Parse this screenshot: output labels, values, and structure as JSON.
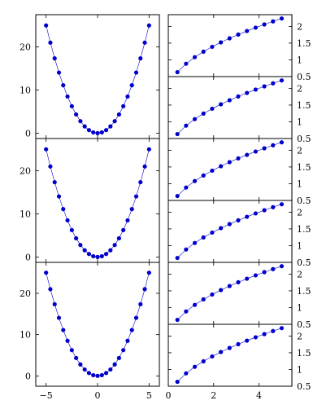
{
  "colors": {
    "series": "#0000cc"
  },
  "chart_data": [
    {
      "type": "line",
      "panel": "left-1",
      "x": [
        -5,
        -4.5833,
        -4.1667,
        -3.75,
        -3.3333,
        -2.9167,
        -2.5,
        -2.0833,
        -1.6667,
        -1.25,
        -0.8333,
        -0.4167,
        0,
        0.4167,
        0.8333,
        1.25,
        1.6667,
        2.0833,
        2.5,
        2.9167,
        3.3333,
        3.75,
        4.1667,
        4.5833,
        5
      ],
      "y": [
        25,
        21.0069,
        17.3611,
        14.0625,
        11.1111,
        8.5069,
        6.25,
        4.3403,
        2.7778,
        1.5625,
        0.6944,
        0.1736,
        0,
        0.1736,
        0.6944,
        1.5625,
        2.7778,
        4.3403,
        6.25,
        8.5069,
        11.1111,
        14.0625,
        17.3611,
        21.0069,
        25
      ],
      "xlim": [
        -6,
        6
      ],
      "ylim": [
        -1.25,
        27.5
      ],
      "yticks": [
        0,
        10,
        20
      ],
      "yticklabels": [
        "0",
        "10",
        "20"
      ],
      "xticks": [
        -5,
        0,
        5
      ],
      "xticklabels": []
    },
    {
      "type": "line",
      "panel": "left-2",
      "x": [
        -5,
        -4.5833,
        -4.1667,
        -3.75,
        -3.3333,
        -2.9167,
        -2.5,
        -2.0833,
        -1.6667,
        -1.25,
        -0.8333,
        -0.4167,
        0,
        0.4167,
        0.8333,
        1.25,
        1.6667,
        2.0833,
        2.5,
        2.9167,
        3.3333,
        3.75,
        4.1667,
        4.5833,
        5
      ],
      "y": [
        25,
        21.0069,
        17.3611,
        14.0625,
        11.1111,
        8.5069,
        6.25,
        4.3403,
        2.7778,
        1.5625,
        0.6944,
        0.1736,
        0,
        0.1736,
        0.6944,
        1.5625,
        2.7778,
        4.3403,
        6.25,
        8.5069,
        11.1111,
        14.0625,
        17.3611,
        21.0069,
        25
      ],
      "xlim": [
        -6,
        6
      ],
      "ylim": [
        -1.25,
        27.5
      ],
      "yticks": [
        0,
        10,
        20
      ],
      "yticklabels": [
        "0",
        "10",
        "20"
      ],
      "xticks": [
        -5,
        0,
        5
      ],
      "xticklabels": []
    },
    {
      "type": "line",
      "panel": "left-3",
      "x": [
        -5,
        -4.5833,
        -4.1667,
        -3.75,
        -3.3333,
        -2.9167,
        -2.5,
        -2.0833,
        -1.6667,
        -1.25,
        -0.8333,
        -0.4167,
        0,
        0.4167,
        0.8333,
        1.25,
        1.6667,
        2.0833,
        2.5,
        2.9167,
        3.3333,
        3.75,
        4.1667,
        4.5833,
        5
      ],
      "y": [
        25,
        21.0069,
        17.3611,
        14.0625,
        11.1111,
        8.5069,
        6.25,
        4.3403,
        2.7778,
        1.5625,
        0.6944,
        0.1736,
        0,
        0.1736,
        0.6944,
        1.5625,
        2.7778,
        4.3403,
        6.25,
        8.5069,
        11.1111,
        14.0625,
        17.3611,
        21.0069,
        25
      ],
      "xlim": [
        -6,
        6
      ],
      "ylim": [
        -2.5,
        27.5
      ],
      "yticks": [
        0,
        10,
        20
      ],
      "yticklabels": [
        "0",
        "10",
        "20"
      ],
      "xticks": [
        -5,
        0,
        5
      ],
      "xticklabels": [
        "−5",
        "0",
        "5"
      ]
    },
    {
      "type": "line",
      "panel": "right-1",
      "x": [
        0.4,
        0.7833,
        1.1667,
        1.55,
        1.9333,
        2.3167,
        2.7,
        3.0833,
        3.4667,
        3.85,
        4.2333,
        4.6167,
        5
      ],
      "y": [
        0.6325,
        0.8851,
        1.0801,
        1.245,
        1.3904,
        1.5221,
        1.6432,
        1.7559,
        1.8619,
        1.9621,
        2.0575,
        2.1487,
        2.2361
      ],
      "xlim": [
        0,
        5.45
      ],
      "ylim": [
        0.5,
        2.35
      ],
      "yticks": [
        0.5,
        1,
        1.5,
        2
      ],
      "yticklabels": [
        "0.5",
        "1",
        "1.5",
        "2"
      ],
      "xticks": [
        0,
        2,
        4
      ],
      "xticklabels": []
    },
    {
      "type": "line",
      "panel": "right-2",
      "x": [
        0.4,
        0.7833,
        1.1667,
        1.55,
        1.9333,
        2.3167,
        2.7,
        3.0833,
        3.4667,
        3.85,
        4.2333,
        4.6167,
        5
      ],
      "y": [
        0.6325,
        0.8851,
        1.0801,
        1.245,
        1.3904,
        1.5221,
        1.6432,
        1.7559,
        1.8619,
        1.9621,
        2.0575,
        2.1487,
        2.2361
      ],
      "xlim": [
        0,
        5.45
      ],
      "ylim": [
        0.5,
        2.35
      ],
      "yticks": [
        0.5,
        1,
        1.5,
        2
      ],
      "yticklabels": [
        "0.5",
        "1",
        "1.5",
        "2"
      ],
      "xticks": [
        0,
        2,
        4
      ],
      "xticklabels": []
    },
    {
      "type": "line",
      "panel": "right-3",
      "x": [
        0.4,
        0.7833,
        1.1667,
        1.55,
        1.9333,
        2.3167,
        2.7,
        3.0833,
        3.4667,
        3.85,
        4.2333,
        4.6167,
        5
      ],
      "y": [
        0.6325,
        0.8851,
        1.0801,
        1.245,
        1.3904,
        1.5221,
        1.6432,
        1.7559,
        1.8619,
        1.9621,
        2.0575,
        2.1487,
        2.2361
      ],
      "xlim": [
        0,
        5.45
      ],
      "ylim": [
        0.5,
        2.35
      ],
      "yticks": [
        0.5,
        1,
        1.5,
        2
      ],
      "yticklabels": [
        "0.5",
        "1",
        "1.5",
        "2"
      ],
      "xticks": [
        0,
        2,
        4
      ],
      "xticklabels": []
    },
    {
      "type": "line",
      "panel": "right-4",
      "x": [
        0.4,
        0.7833,
        1.1667,
        1.55,
        1.9333,
        2.3167,
        2.7,
        3.0833,
        3.4667,
        3.85,
        4.2333,
        4.6167,
        5
      ],
      "y": [
        0.6325,
        0.8851,
        1.0801,
        1.245,
        1.3904,
        1.5221,
        1.6432,
        1.7559,
        1.8619,
        1.9621,
        2.0575,
        2.1487,
        2.2361
      ],
      "xlim": [
        0,
        5.45
      ],
      "ylim": [
        0.5,
        2.35
      ],
      "yticks": [
        0.5,
        1,
        1.5,
        2
      ],
      "yticklabels": [
        "0.5",
        "1",
        "1.5",
        "2"
      ],
      "xticks": [
        0,
        2,
        4
      ],
      "xticklabels": []
    },
    {
      "type": "line",
      "panel": "right-5",
      "x": [
        0.4,
        0.7833,
        1.1667,
        1.55,
        1.9333,
        2.3167,
        2.7,
        3.0833,
        3.4667,
        3.85,
        4.2333,
        4.6167,
        5
      ],
      "y": [
        0.6325,
        0.8851,
        1.0801,
        1.245,
        1.3904,
        1.5221,
        1.6432,
        1.7559,
        1.8619,
        1.9621,
        2.0575,
        2.1487,
        2.2361
      ],
      "xlim": [
        0,
        5.45
      ],
      "ylim": [
        0.5,
        2.35
      ],
      "yticks": [
        0.5,
        1,
        1.5,
        2
      ],
      "yticklabels": [
        "0.5",
        "1",
        "1.5",
        "2"
      ],
      "xticks": [
        0,
        2,
        4
      ],
      "xticklabels": []
    },
    {
      "type": "line",
      "panel": "right-6",
      "x": [
        0.4,
        0.7833,
        1.1667,
        1.55,
        1.9333,
        2.3167,
        2.7,
        3.0833,
        3.4667,
        3.85,
        4.2333,
        4.6167,
        5
      ],
      "y": [
        0.6325,
        0.8851,
        1.0801,
        1.245,
        1.3904,
        1.5221,
        1.6432,
        1.7559,
        1.8619,
        1.9621,
        2.0575,
        2.1487,
        2.2361
      ],
      "xlim": [
        0,
        5.45
      ],
      "ylim": [
        0.5,
        2.35
      ],
      "yticks": [
        0.5,
        1,
        1.5,
        2
      ],
      "yticklabels": [
        "0.5",
        "1",
        "1.5",
        "2"
      ],
      "xticks": [
        0,
        2,
        4
      ],
      "xticklabels": [
        "0",
        "2",
        "4"
      ]
    }
  ]
}
